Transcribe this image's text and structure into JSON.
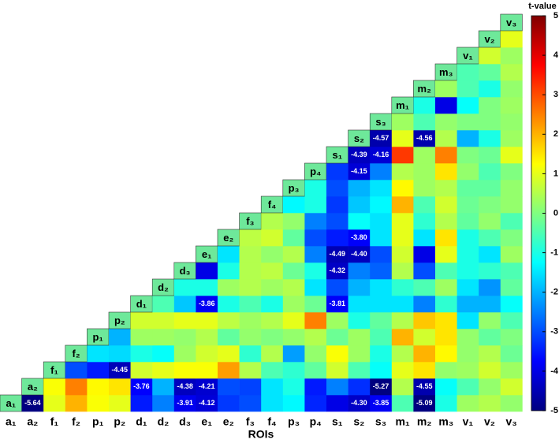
{
  "chart_data": {
    "type": "heatmap",
    "xlabel": "ROIs",
    "colorbar_label": "t-value",
    "colormap": "jet",
    "clim": [
      -5,
      5
    ],
    "cticks": [
      -5,
      -4,
      -3,
      -2,
      -1,
      0,
      1,
      2,
      3,
      4,
      5
    ],
    "categories": [
      "a₁",
      "a₂",
      "f₁",
      "f₂",
      "p₁",
      "p₂",
      "d₁",
      "d₂",
      "d₃",
      "e₁",
      "e₂",
      "f₃",
      "f₄",
      "p₃",
      "p₄",
      "s₁",
      "s₂",
      "s₃",
      "m₁",
      "m₂",
      "m₃",
      "v₁",
      "v₂",
      "v₃"
    ],
    "rows": [
      [
        -5.64,
        1.0,
        2.0,
        1.2,
        1.0,
        -3.5,
        -2.5,
        -3.91,
        -4.12,
        -3.2,
        -3.0,
        -1.5,
        -1.3,
        -3.4,
        -4.0,
        -4.3,
        -3.85,
        -0.5,
        -5.09,
        -1.0,
        0.3,
        0.5,
        0.2
      ],
      [
        1.2,
        2.5,
        1.3,
        1.5,
        -3.76,
        -2.0,
        -4.38,
        -4.21,
        -3.0,
        -3.1,
        -1.5,
        -1.0,
        -3.5,
        -2.5,
        -3.3,
        -5.27,
        0.5,
        -4.55,
        -1.2,
        -0.5,
        0.2,
        0.8
      ],
      [
        -3.0,
        -3.5,
        -4.45,
        0.8,
        1.0,
        1.2,
        1.2,
        2.2,
        0.5,
        -0.5,
        -0.8,
        -0.3,
        0.8,
        -0.5,
        -1.2,
        1.0,
        1.5,
        0.2,
        0.3,
        0.8,
        0.3
      ],
      [
        -1.5,
        -1.6,
        -1.0,
        -1.2,
        0.3,
        0.8,
        1.0,
        -0.8,
        0.5,
        -2.2,
        0.2,
        1.2,
        0.3,
        -1.0,
        0.5,
        2.0,
        1.3,
        0.2,
        0.5,
        -0.2
      ],
      [
        -2.0,
        0.3,
        0.3,
        0.2,
        0.5,
        -0.3,
        0.2,
        0.0,
        0.2,
        0.5,
        -0.2,
        0.3,
        -0.5,
        2.0,
        0.8,
        1.5,
        0.2,
        -0.3,
        0.0
      ],
      [
        0.8,
        0.8,
        1.0,
        1.0,
        0.6,
        0.3,
        0.5,
        1.0,
        2.5,
        0.3,
        -1.0,
        -0.3,
        0.5,
        1.8,
        1.5,
        -1.5,
        0.2,
        -0.5
      ],
      [
        -0.5,
        -1.8,
        -3.86,
        -1.0,
        -0.5,
        -1.0,
        0.3,
        -0.2,
        -3.81,
        -1.5,
        -1.5,
        -1.5,
        -2.5,
        -0.8,
        -2.0,
        -2.0,
        -1.2
      ],
      [
        -1.0,
        -1.0,
        0.3,
        0.5,
        0.3,
        0.5,
        -1.5,
        -3.0,
        -2.0,
        -1.5,
        -0.8,
        -0.5,
        0.3,
        -1.5,
        -2.3,
        -0.3
      ],
      [
        -4.0,
        -1.0,
        0.5,
        0.6,
        -0.2,
        -1.0,
        -4.32,
        -2.5,
        -2.8,
        0.5,
        -3.0,
        -0.5,
        -1.0,
        -0.8,
        -0.5
      ],
      [
        -1.5,
        0.5,
        0.2,
        0.5,
        -2.5,
        -4.49,
        -4.4,
        -3.0,
        0.8,
        -4.0,
        1.0,
        -1.0,
        -1.5,
        0.3
      ],
      [
        0.6,
        0.8,
        -0.3,
        -3.0,
        -3.5,
        -3.8,
        -1.5,
        1.0,
        -1.5,
        1.5,
        -1.0,
        -0.5,
        0.0
      ],
      [
        0.5,
        0.2,
        -2.5,
        -3.0,
        -1.2,
        -1.5,
        1.0,
        -0.8,
        0.5,
        -0.3,
        0.2,
        -0.5
      ],
      [
        -1.3,
        -1.0,
        -3.2,
        -1.8,
        -1.3,
        2.0,
        -0.5,
        0.8,
        -0.2,
        0.0,
        0.2
      ],
      [
        -1.0,
        -3.0,
        -2.0,
        -1.5,
        1.3,
        0.3,
        0.5,
        -0.3,
        -0.3,
        0.2
      ],
      [
        -3.2,
        -4.15,
        -2.5,
        0.5,
        0.3,
        1.5,
        0.2,
        -0.5,
        0.0
      ],
      [
        -4.39,
        -4.16,
        3.2,
        0.3,
        2.5,
        0.0,
        -0.2,
        1.0
      ],
      [
        -4.57,
        1.0,
        -4.56,
        0.5,
        -2.0,
        -1.0,
        0.3
      ],
      [
        0.3,
        -0.5,
        0.2,
        0.0,
        0.0,
        0.2
      ],
      [
        -1.0,
        -4.0,
        -1.2,
        0.0,
        0.3
      ],
      [
        0.3,
        -0.5,
        -1.0,
        0.2
      ],
      [
        -0.5,
        -0.3,
        0.5
      ],
      [
        0.8,
        0.3
      ],
      [
        1.0
      ],
      []
    ],
    "value_labels": [
      [
        "-5.64",
        null,
        null,
        null,
        null,
        null,
        null,
        "-3.91",
        "-4.12",
        null,
        null,
        null,
        null,
        null,
        null,
        "-4.30",
        "-3.85",
        null,
        "-5.09",
        null,
        null,
        null,
        null
      ],
      [
        null,
        null,
        null,
        null,
        "-3.76",
        null,
        "-4.38",
        "-4.21",
        null,
        null,
        null,
        null,
        null,
        null,
        null,
        "-5.27",
        null,
        "-4.55",
        null,
        null,
        null,
        null
      ],
      [
        null,
        null,
        "-4.45",
        null,
        null,
        null,
        null,
        null,
        null,
        null,
        null,
        null,
        null,
        null,
        null,
        null,
        null,
        null,
        null,
        null,
        null
      ],
      [
        null,
        null,
        null,
        null,
        null,
        null,
        null,
        null,
        null,
        null,
        null,
        null,
        null,
        null,
        null,
        null,
        null,
        null,
        null,
        null
      ],
      [
        null,
        null,
        null,
        null,
        null,
        null,
        null,
        null,
        null,
        null,
        null,
        null,
        null,
        null,
        null,
        null,
        null,
        null,
        null
      ],
      [
        null,
        null,
        null,
        null,
        null,
        null,
        null,
        null,
        null,
        null,
        null,
        null,
        null,
        null,
        null,
        null,
        null,
        null
      ],
      [
        null,
        null,
        "-3.86",
        null,
        null,
        null,
        null,
        null,
        "-3.81",
        null,
        null,
        null,
        null,
        null,
        null,
        null,
        null
      ],
      [
        null,
        null,
        null,
        null,
        null,
        null,
        null,
        null,
        null,
        null,
        null,
        null,
        null,
        null,
        null,
        null
      ],
      [
        null,
        null,
        null,
        null,
        null,
        null,
        "-4.32",
        null,
        null,
        null,
        null,
        null,
        null,
        null,
        null
      ],
      [
        null,
        null,
        null,
        null,
        null,
        "-4.49",
        "-4.40",
        null,
        null,
        null,
        null,
        null,
        null,
        null
      ],
      [
        null,
        null,
        null,
        null,
        null,
        "-3.80",
        null,
        null,
        null,
        null,
        null,
        null,
        null
      ],
      [
        null,
        null,
        null,
        null,
        null,
        null,
        null,
        null,
        null,
        null,
        null,
        null
      ],
      [
        null,
        null,
        null,
        null,
        null,
        null,
        null,
        null,
        null,
        null,
        null
      ],
      [
        null,
        null,
        null,
        null,
        null,
        null,
        null,
        null,
        null,
        null
      ],
      [
        null,
        "-4.15",
        null,
        null,
        null,
        null,
        null,
        null,
        null
      ],
      [
        "-4.39",
        "-4.16",
        null,
        null,
        null,
        null,
        null,
        null
      ],
      [
        "-4.57",
        null,
        "-4.56",
        null,
        null,
        null,
        null
      ],
      [
        null,
        null,
        null,
        null,
        null,
        null
      ],
      [
        null,
        null,
        null,
        null,
        null
      ],
      [
        null,
        null,
        null,
        null
      ],
      [
        null,
        null,
        null
      ],
      [
        null,
        null
      ],
      [
        null
      ],
      []
    ]
  }
}
